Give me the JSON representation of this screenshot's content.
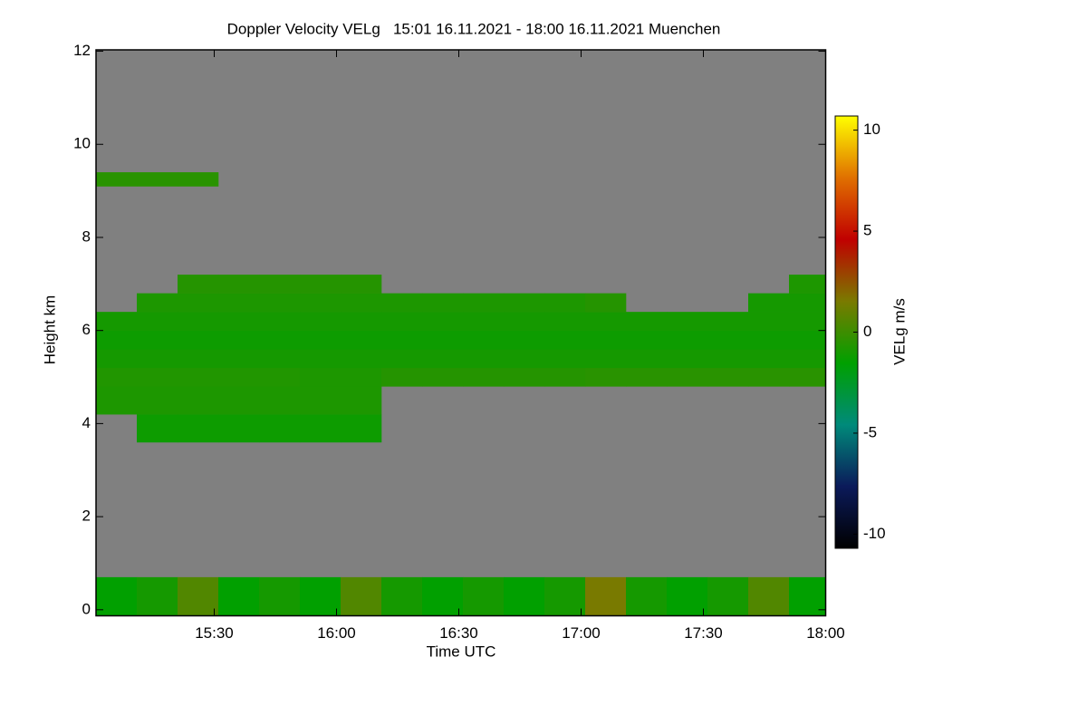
{
  "chart_data": {
    "type": "heatmap",
    "title": "Doppler Velocity VELg   15:01 16.11.2021 - 18:00 16.11.2021 Muenchen",
    "x_label": "Time UTC",
    "y_label": "Height km",
    "colorbar_label": "VELg m/s",
    "xlim": [
      901,
      1080
    ],
    "ylim": [
      -0.13,
      12.03
    ],
    "clim": [
      -10.7,
      10.7
    ],
    "xticks": [
      {
        "value": 930,
        "label": "15:30"
      },
      {
        "value": 960,
        "label": "16:00"
      },
      {
        "value": 990,
        "label": "16:30"
      },
      {
        "value": 1020,
        "label": "17:00"
      },
      {
        "value": 1050,
        "label": "17:30"
      },
      {
        "value": 1080,
        "label": "18:00"
      }
    ],
    "yticks": [
      0,
      2,
      4,
      6,
      8,
      10,
      12
    ],
    "cticks": [
      -10,
      -5,
      0,
      5,
      10
    ],
    "colormap": [
      "#000000",
      "#0b1a5a",
      "#008a7a",
      "#00a000",
      "#7a7a00",
      "#c00000",
      "#e07000",
      "#ffff00"
    ],
    "nan_color": "#808080",
    "x": [
      901,
      911,
      921,
      931,
      941,
      951,
      961,
      971,
      981,
      991,
      1001,
      1011,
      1021,
      1031,
      1041,
      1051,
      1061,
      1071,
      1080
    ],
    "y": [
      -0.13,
      0.7,
      3.6,
      4.2,
      4.8,
      5.2,
      5.6,
      6.0,
      6.4,
      6.8,
      7.2,
      9.1,
      9.4,
      12.03
    ],
    "z": [
      [
        -1.5,
        -1,
        0.5,
        -1.5,
        -1,
        -1.5,
        0.5,
        -1,
        -1.5,
        -1,
        -1.5,
        -1,
        1.5,
        -1,
        -1.5,
        -1,
        0.5,
        -1.5
      ],
      [
        null,
        null,
        null,
        null,
        null,
        null,
        null,
        null,
        null,
        null,
        null,
        null,
        null,
        null,
        null,
        null,
        null,
        null
      ],
      [
        null,
        -1.2,
        -1.2,
        -1.2,
        -1.2,
        -1.2,
        -1.2,
        null,
        null,
        null,
        null,
        null,
        null,
        null,
        null,
        null,
        null,
        null
      ],
      [
        -0.8,
        -0.8,
        -0.8,
        -0.8,
        -0.8,
        -0.8,
        -0.8,
        null,
        null,
        null,
        null,
        null,
        null,
        null,
        null,
        null,
        null,
        null
      ],
      [
        -0.7,
        -0.7,
        -0.7,
        -0.7,
        -0.7,
        -0.8,
        -0.8,
        -0.6,
        -0.6,
        -0.6,
        -0.6,
        -0.6,
        -0.5,
        -0.5,
        -0.5,
        -0.5,
        -0.5,
        -0.5
      ],
      [
        -1,
        -1,
        -1,
        -1,
        -1,
        -1,
        -1,
        -1,
        -1,
        -1,
        -1,
        -1,
        -1,
        -1,
        -1,
        -1,
        -1,
        -1
      ],
      [
        -1.2,
        -1.2,
        -1.2,
        -1.2,
        -1.2,
        -1.2,
        -1.2,
        -1.2,
        -1.2,
        -1.2,
        -1.2,
        -1.2,
        -1.2,
        -1.2,
        -1.2,
        -1.2,
        -1.2,
        -1.2
      ],
      [
        -1,
        -1,
        -1,
        -1,
        -1,
        -1,
        -1,
        -1,
        -1,
        -1,
        -1,
        -1,
        -1,
        -1,
        -1,
        -1,
        -1,
        -1
      ],
      [
        null,
        -0.8,
        -0.8,
        -0.8,
        -0.8,
        -0.8,
        -0.8,
        -0.8,
        -0.8,
        -0.8,
        -0.8,
        -0.8,
        -0.6,
        null,
        null,
        null,
        -1,
        -1
      ],
      [
        null,
        null,
        -0.6,
        -0.6,
        -0.6,
        -0.6,
        -0.6,
        null,
        null,
        null,
        null,
        null,
        null,
        null,
        null,
        null,
        null,
        -0.8
      ],
      [
        null,
        null,
        null,
        null,
        null,
        null,
        null,
        null,
        null,
        null,
        null,
        null,
        null,
        null,
        null,
        null,
        null,
        null
      ],
      [
        -0.5,
        -0.5,
        -0.5,
        null,
        null,
        null,
        null,
        null,
        null,
        null,
        null,
        null,
        null,
        null,
        null,
        null,
        null,
        null
      ],
      [
        null,
        null,
        null,
        null,
        null,
        null,
        null,
        null,
        null,
        null,
        null,
        null,
        null,
        null,
        null,
        null,
        null,
        null
      ]
    ]
  }
}
